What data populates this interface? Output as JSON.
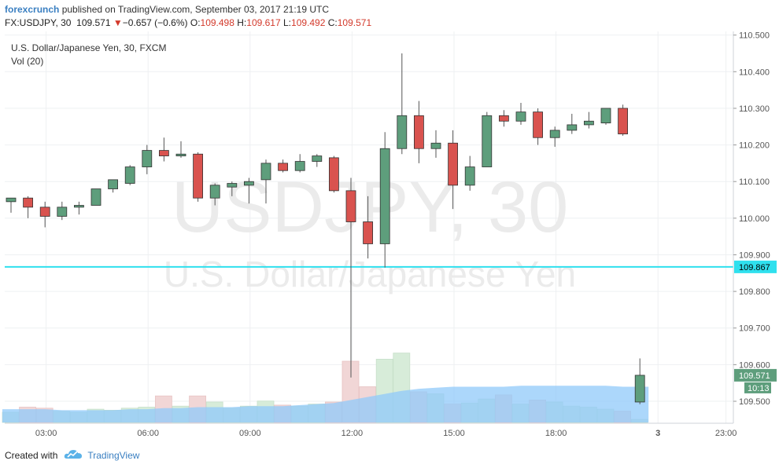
{
  "header": {
    "author": "forexcrunch",
    "published": "published on TradingView.com, September 03, 2017 21:19 UTC",
    "symbol_interval": "FX:USDJPY, 30",
    "last": "109.571",
    "change_arrow": "▼",
    "change": "−0.657 (−0.6%)",
    "o_label": "O:",
    "o_value": "109.498",
    "h_label": "H:",
    "h_value": "109.617",
    "l_label": "L:",
    "l_value": "109.492",
    "c_label": "C:",
    "c_value": "109.571"
  },
  "legend": {
    "instrument": "U.S. Dollar/Japanese Yen, 30, FXCM",
    "volume": "Vol (20)"
  },
  "watermark": {
    "symbol": "USDJPY, 30",
    "name": "U.S. Dollar/Japanese Yen"
  },
  "footer": {
    "created_with": "Created with",
    "brand": "TradingView"
  },
  "colors": {
    "up": "#5e9e7c",
    "down": "#d9534f",
    "hline": "#2fe0ee",
    "volume_ma": "#90caf9",
    "vol_up": "#d7ecd9",
    "vol_down": "#f1d6d6"
  },
  "chart_data": {
    "type": "candlestick",
    "title": "U.S. Dollar/Japanese Yen, 30, FXCM",
    "ylim": [
      109.44,
      110.51
    ],
    "y_ticks": [
      "110.500",
      "110.400",
      "110.300",
      "110.200",
      "110.100",
      "110.000",
      "109.900",
      "109.800",
      "109.700",
      "109.600",
      "109.500"
    ],
    "x_ticks": [
      "03:00",
      "06:00",
      "09:00",
      "12:00",
      "15:00",
      "18:00",
      "3",
      "23:00"
    ],
    "grid": true,
    "horizontal_line": {
      "value": 109.867,
      "label": "109.867"
    },
    "last_price_label": "109.571",
    "countdown_label": "10:13",
    "candles": [
      {
        "o": 110.045,
        "h": 110.055,
        "l": 110.015,
        "c": 110.055
      },
      {
        "o": 110.055,
        "h": 110.06,
        "l": 110.0,
        "c": 110.03
      },
      {
        "o": 110.03,
        "h": 110.045,
        "l": 109.975,
        "c": 110.005
      },
      {
        "o": 110.005,
        "h": 110.045,
        "l": 109.995,
        "c": 110.03
      },
      {
        "o": 110.03,
        "h": 110.045,
        "l": 110.01,
        "c": 110.035
      },
      {
        "o": 110.035,
        "h": 110.08,
        "l": 110.035,
        "c": 110.08
      },
      {
        "o": 110.08,
        "h": 110.105,
        "l": 110.07,
        "c": 110.105
      },
      {
        "o": 110.095,
        "h": 110.145,
        "l": 110.09,
        "c": 110.14
      },
      {
        "o": 110.14,
        "h": 110.2,
        "l": 110.12,
        "c": 110.185
      },
      {
        "o": 110.185,
        "h": 110.22,
        "l": 110.155,
        "c": 110.17
      },
      {
        "o": 110.17,
        "h": 110.21,
        "l": 110.165,
        "c": 110.175
      },
      {
        "o": 110.175,
        "h": 110.18,
        "l": 110.045,
        "c": 110.055
      },
      {
        "o": 110.055,
        "h": 110.095,
        "l": 110.035,
        "c": 110.09
      },
      {
        "o": 110.085,
        "h": 110.1,
        "l": 110.06,
        "c": 110.095
      },
      {
        "o": 110.09,
        "h": 110.11,
        "l": 110.04,
        "c": 110.1
      },
      {
        "o": 110.105,
        "h": 110.16,
        "l": 110.04,
        "c": 110.15
      },
      {
        "o": 110.15,
        "h": 110.16,
        "l": 110.125,
        "c": 110.13
      },
      {
        "o": 110.13,
        "h": 110.175,
        "l": 110.125,
        "c": 110.155
      },
      {
        "o": 110.155,
        "h": 110.175,
        "l": 110.14,
        "c": 110.17
      },
      {
        "o": 110.165,
        "h": 110.17,
        "l": 110.07,
        "c": 110.075
      },
      {
        "o": 110.075,
        "h": 110.11,
        "l": 109.565,
        "c": 109.99
      },
      {
        "o": 109.99,
        "h": 110.06,
        "l": 109.89,
        "c": 109.93
      },
      {
        "o": 109.93,
        "h": 110.235,
        "l": 109.865,
        "c": 110.19
      },
      {
        "o": 110.19,
        "h": 110.45,
        "l": 110.175,
        "c": 110.28
      },
      {
        "o": 110.28,
        "h": 110.32,
        "l": 110.15,
        "c": 110.19
      },
      {
        "o": 110.19,
        "h": 110.24,
        "l": 110.165,
        "c": 110.205
      },
      {
        "o": 110.205,
        "h": 110.24,
        "l": 110.025,
        "c": 110.09
      },
      {
        "o": 110.09,
        "h": 110.17,
        "l": 110.075,
        "c": 110.14
      },
      {
        "o": 110.14,
        "h": 110.29,
        "l": 110.14,
        "c": 110.28
      },
      {
        "o": 110.28,
        "h": 110.295,
        "l": 110.25,
        "c": 110.265
      },
      {
        "o": 110.265,
        "h": 110.315,
        "l": 110.255,
        "c": 110.29
      },
      {
        "o": 110.29,
        "h": 110.3,
        "l": 110.2,
        "c": 110.22
      },
      {
        "o": 110.22,
        "h": 110.25,
        "l": 110.195,
        "c": 110.24
      },
      {
        "o": 110.24,
        "h": 110.285,
        "l": 110.23,
        "c": 110.255
      },
      {
        "o": 110.255,
        "h": 110.29,
        "l": 110.245,
        "c": 110.265
      },
      {
        "o": 110.26,
        "h": 110.3,
        "l": 110.255,
        "c": 110.3
      },
      {
        "o": 110.3,
        "h": 110.31,
        "l": 110.225,
        "c": 110.23
      },
      {
        "o": 109.498,
        "h": 109.617,
        "l": 109.492,
        "c": 109.571
      }
    ],
    "candle_x_index": [
      0,
      1,
      2,
      3,
      4,
      5,
      6,
      7,
      8,
      9,
      10,
      11,
      12,
      13,
      14,
      15,
      16,
      17,
      18,
      19,
      20,
      21,
      22,
      23,
      24,
      25,
      26,
      27,
      28,
      29,
      30,
      31,
      32,
      33,
      34,
      35,
      36,
      37
    ],
    "volume": [
      10,
      15,
      14,
      11,
      10,
      13,
      12,
      14,
      15,
      26,
      16,
      26,
      20,
      14,
      16,
      21,
      17,
      16,
      18,
      20,
      60,
      35,
      62,
      68,
      30,
      28,
      18,
      19,
      23,
      27,
      18,
      22,
      20,
      16,
      15,
      13,
      11,
      3
    ],
    "volume_ma": [
      13,
      13,
      13,
      12,
      12,
      12,
      12,
      13,
      13,
      14,
      14,
      15,
      15,
      15,
      16,
      16,
      16,
      17,
      18,
      19,
      22,
      25,
      28,
      31,
      33,
      34,
      35,
      35,
      35,
      35,
      36,
      36,
      36,
      36,
      36,
      36,
      35,
      35
    ]
  }
}
